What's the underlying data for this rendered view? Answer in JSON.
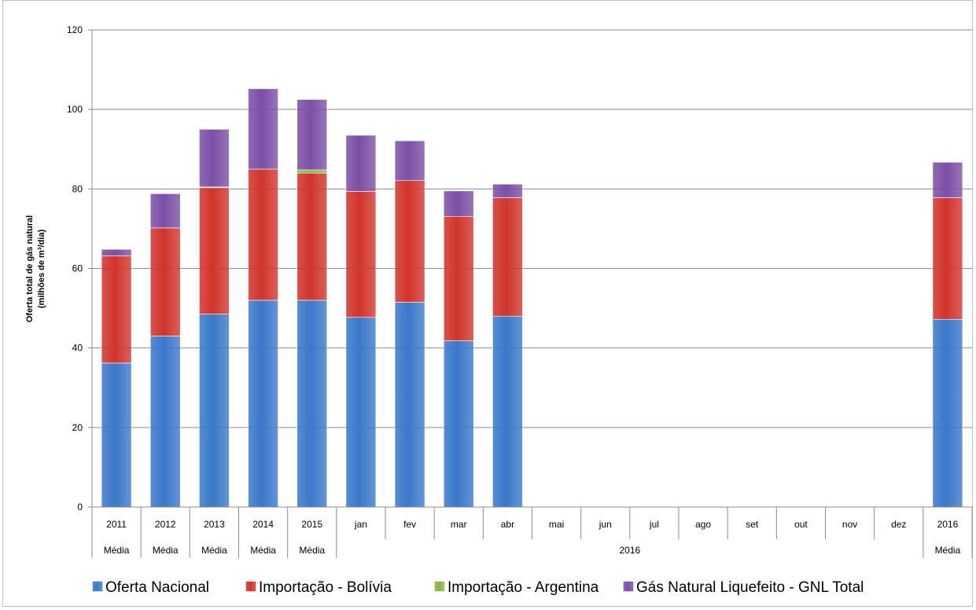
{
  "chart_data": {
    "type": "bar",
    "stacked": true,
    "ylabel_line1": "Oferta total  de gás natural",
    "ylabel_line2": "(milhões de m³/dia)",
    "yticks": [
      "0",
      "20",
      "40",
      "60",
      "80",
      "100",
      "120"
    ],
    "ylim": [
      0,
      120
    ],
    "grid": true,
    "categories": [
      "2011",
      "2012",
      "2013",
      "2014",
      "2015",
      "jan",
      "fev",
      "mar",
      "abr",
      "mai",
      "jun",
      "jul",
      "ago",
      "set",
      "out",
      "nov",
      "dez",
      "2016"
    ],
    "groups": [
      {
        "label": "Média",
        "span": 1
      },
      {
        "label": "Média",
        "span": 1
      },
      {
        "label": "Média",
        "span": 1
      },
      {
        "label": "Média",
        "span": 1
      },
      {
        "label": "Média",
        "span": 1
      },
      {
        "label": "2016",
        "span": 12
      },
      {
        "label": "Média",
        "span": 1
      }
    ],
    "series": [
      {
        "name": "Oferta Nacional",
        "color": "#3a78c9",
        "values": [
          36.2,
          43.0,
          48.5,
          52.0,
          52.0,
          47.7,
          51.5,
          41.8,
          48.0,
          null,
          null,
          null,
          null,
          null,
          null,
          null,
          null,
          47.2
        ]
      },
      {
        "name": "Importação - Bolívia",
        "color": "#d0342c",
        "values": [
          27.0,
          27.2,
          31.8,
          33.0,
          32.0,
          31.7,
          30.6,
          31.3,
          29.8,
          null,
          null,
          null,
          null,
          null,
          null,
          null,
          null,
          30.6
        ]
      },
      {
        "name": "Importação - Argentina",
        "color": "#8cb43c",
        "values": [
          0.0,
          0.0,
          0.2,
          0.0,
          0.8,
          0.0,
          0.0,
          0.0,
          0.0,
          null,
          null,
          null,
          null,
          null,
          null,
          null,
          null,
          0.0
        ]
      },
      {
        "name": "Gás Natural Liquefeito - GNL Total",
        "color": "#7b4fa6",
        "values": [
          1.6,
          8.6,
          14.5,
          20.2,
          17.7,
          14.1,
          10.0,
          6.4,
          3.4,
          null,
          null,
          null,
          null,
          null,
          null,
          null,
          null,
          8.9
        ]
      }
    ],
    "legend_position": "bottom"
  }
}
